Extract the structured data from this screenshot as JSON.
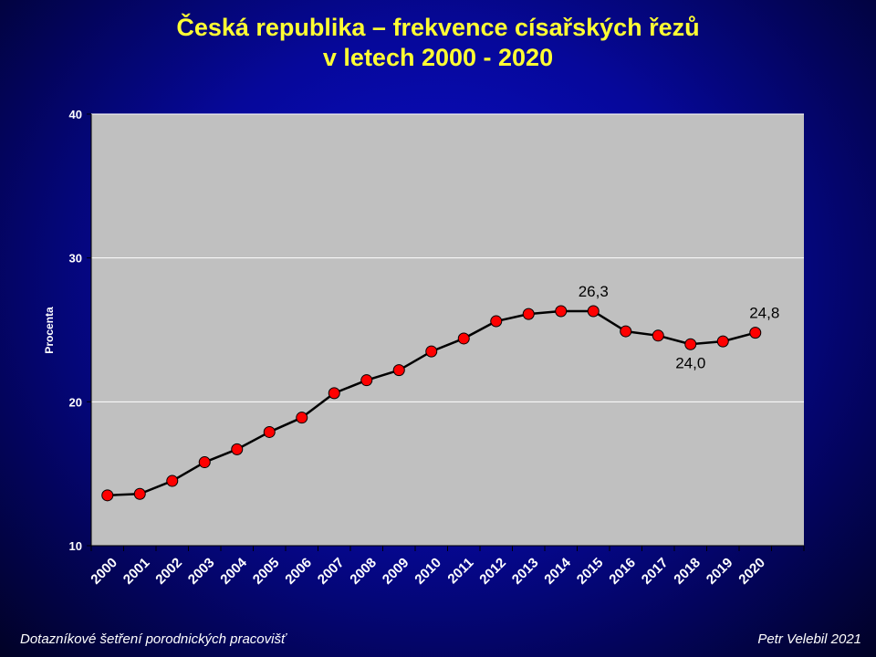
{
  "title": {
    "line1": "Česká republika – frekvence císařských řezů",
    "line2": "v letech 2000 - 2020"
  },
  "footer": {
    "left": "Dotazníkové šetření porodnických pracovišť",
    "right": "Petr Velebil 2021"
  },
  "colors": {
    "background": "#03045a",
    "title": "#ffff33",
    "plot_area": "#c0c0c0",
    "gridline": "#ffffff",
    "line": "#000000",
    "marker": "#ff0000",
    "axis_text": "#ffffff"
  },
  "chart_data": {
    "type": "line",
    "title": "Česká republika – frekvence císařských řezů v letech 2000 - 2020",
    "xlabel": "",
    "ylabel": "Procenta",
    "ylim": [
      10,
      40
    ],
    "yticks": [
      10,
      20,
      30,
      40
    ],
    "grid": true,
    "categories": [
      "2000",
      "2001",
      "2002",
      "2003",
      "2004",
      "2005",
      "2006",
      "2007",
      "2008",
      "2009",
      "2010",
      "2011",
      "2012",
      "2013",
      "2014",
      "2015",
      "2016",
      "2017",
      "2018",
      "2019",
      "2020"
    ],
    "series": [
      {
        "values": [
          13.5,
          13.6,
          14.5,
          15.8,
          16.7,
          17.9,
          18.9,
          20.6,
          21.5,
          22.2,
          23.5,
          24.4,
          25.6,
          26.1,
          26.3,
          26.3,
          24.9,
          24.6,
          24.0,
          24.2,
          24.8
        ]
      }
    ],
    "data_labels": [
      {
        "category": "2015",
        "text": "26,3"
      },
      {
        "category": "2018",
        "text": "24,0"
      },
      {
        "category": "2020",
        "text": "24,8"
      }
    ]
  }
}
